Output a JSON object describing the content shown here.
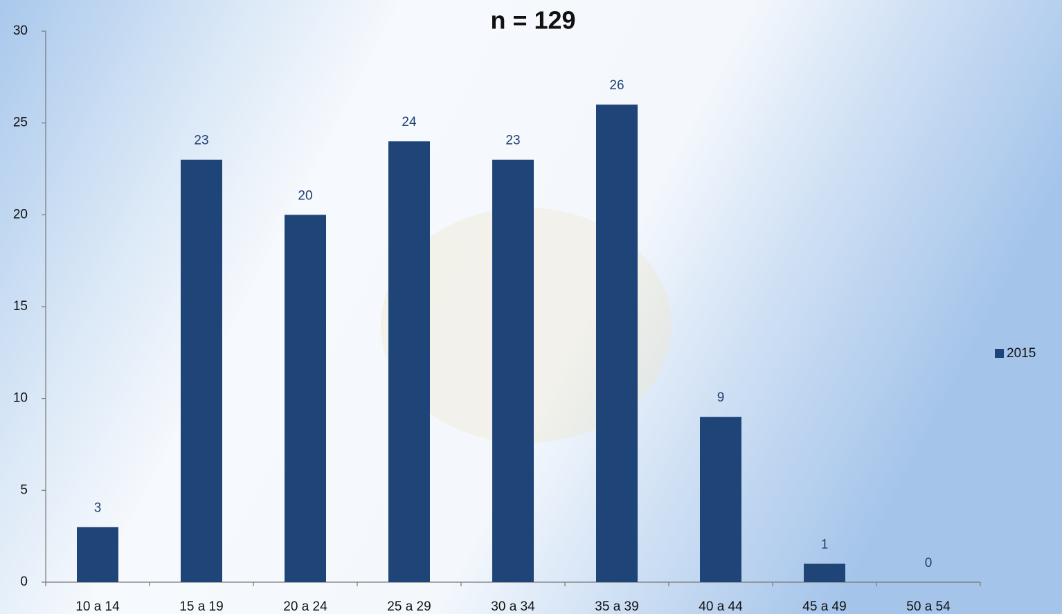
{
  "chart_data": {
    "type": "bar",
    "title": "n = 129",
    "categories": [
      "10 a 14",
      "15 a 19",
      "20 a 24",
      "25 a 29",
      "30 a 34",
      "35 a 39",
      "40 a 44",
      "45 a 49",
      "50 a 54"
    ],
    "series": [
      {
        "name": "2015",
        "color": "#1f4578",
        "values": [
          3,
          23,
          20,
          24,
          23,
          26,
          9,
          1,
          0
        ]
      }
    ],
    "ylim": [
      0,
      30
    ],
    "yticks": [
      0,
      5,
      10,
      15,
      20,
      25,
      30
    ],
    "grid": false,
    "legend": "right"
  }
}
